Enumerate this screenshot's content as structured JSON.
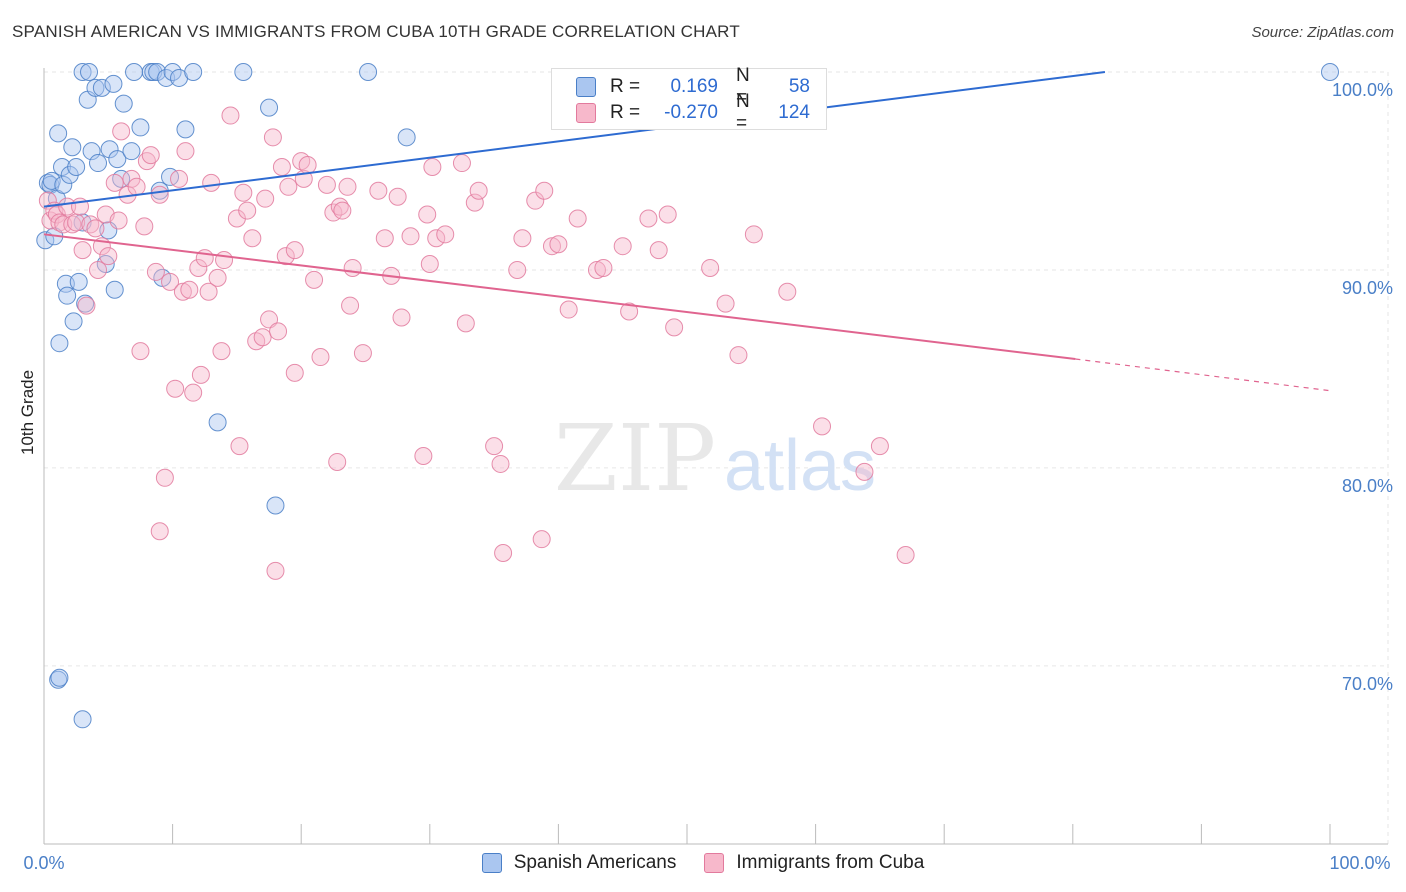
{
  "header": {
    "title": "SPANISH AMERICAN VS IMMIGRANTS FROM CUBA 10TH GRADE CORRELATION CHART",
    "source": "Source: ZipAtlas.com"
  },
  "legend": {
    "r_label": "R =",
    "n_label": "N =",
    "rows": [
      {
        "r": "0.169",
        "n": "58",
        "fill": "#aac6f0",
        "stroke": "#4a7fc7"
      },
      {
        "r": "-0.270",
        "n": "124",
        "fill": "#f7b8cb",
        "stroke": "#e27a9d"
      }
    ]
  },
  "colors": {
    "blue": "#4a7fc7",
    "blue_line": "#2e6bd1",
    "pink": "#e27a9d",
    "pink_line": "#e0648f",
    "grid": "#e6e6e6"
  },
  "chart_data": {
    "type": "scatter",
    "title": "SPANISH AMERICAN VS IMMIGRANTS FROM CUBA 10TH GRADE CORRELATION CHART",
    "xlabel": "",
    "ylabel": "10th Grade",
    "xlim": [
      0,
      100
    ],
    "ylim": [
      61,
      100
    ],
    "x_tick_labels": [
      "0.0%",
      "100.0%"
    ],
    "y_ticks": [
      70,
      80,
      90,
      100
    ],
    "y_tick_labels": [
      "70.0%",
      "80.0%",
      "90.0%",
      "100.0%"
    ],
    "grid": true,
    "legend_position": "top-center",
    "watermark": {
      "zip": "ZIP",
      "atlas": "atlas"
    },
    "series": [
      {
        "name": "Spanish Americans",
        "color": "#4a7fc7",
        "trend": {
          "x0": 0,
          "y0": 93.2,
          "x1": 82.5,
          "y1": 100
        },
        "points": [
          [
            0.1,
            91.5
          ],
          [
            0.3,
            94.4
          ],
          [
            0.5,
            94.3
          ],
          [
            0.6,
            94.5
          ],
          [
            0.8,
            91.7
          ],
          [
            1.0,
            93.6
          ],
          [
            1.1,
            96.9
          ],
          [
            1.2,
            86.3
          ],
          [
            1.4,
            95.2
          ],
          [
            1.5,
            94.3
          ],
          [
            1.7,
            89.3
          ],
          [
            1.8,
            88.7
          ],
          [
            2.0,
            94.8
          ],
          [
            2.2,
            96.2
          ],
          [
            2.3,
            87.4
          ],
          [
            2.5,
            95.2
          ],
          [
            2.7,
            89.4
          ],
          [
            3.0,
            92.4
          ],
          [
            3.0,
            100
          ],
          [
            3.2,
            88.3
          ],
          [
            3.4,
            98.6
          ],
          [
            3.5,
            100
          ],
          [
            3.7,
            96.0
          ],
          [
            4.0,
            99.2
          ],
          [
            4.2,
            95.4
          ],
          [
            4.5,
            99.2
          ],
          [
            4.8,
            90.3
          ],
          [
            5.1,
            96.1
          ],
          [
            5.4,
            99.4
          ],
          [
            5.5,
            89.0
          ],
          [
            5.7,
            95.6
          ],
          [
            6.0,
            94.6
          ],
          [
            6.2,
            98.4
          ],
          [
            6.8,
            96.0
          ],
          [
            7.0,
            100
          ],
          [
            7.5,
            97.2
          ],
          [
            8.3,
            100
          ],
          [
            8.5,
            100
          ],
          [
            8.8,
            100
          ],
          [
            9.0,
            94.0
          ],
          [
            9.2,
            89.6
          ],
          [
            9.5,
            99.7
          ],
          [
            9.8,
            94.7
          ],
          [
            10.0,
            100
          ],
          [
            10.5,
            99.7
          ],
          [
            11.0,
            97.1
          ],
          [
            11.6,
            100
          ],
          [
            13.5,
            82.3
          ],
          [
            15.5,
            100
          ],
          [
            17.5,
            98.2
          ],
          [
            18.0,
            78.1
          ],
          [
            25.2,
            100
          ],
          [
            28.2,
            96.7
          ],
          [
            1.1,
            69.3
          ],
          [
            1.2,
            69.4
          ],
          [
            3.0,
            67.3
          ],
          [
            5.0,
            92.0
          ],
          [
            100,
            100
          ]
        ]
      },
      {
        "name": "Immigrants from Cuba",
        "color": "#e27a9d",
        "trend": {
          "x0": 0,
          "y0": 91.8,
          "x1": 80.2,
          "y1": 85.5,
          "dash_to_x": 100,
          "dash_to_y": 83.9
        },
        "points": [
          [
            0.3,
            93.5
          ],
          [
            0.5,
            92.5
          ],
          [
            0.8,
            93.0
          ],
          [
            1.0,
            92.8
          ],
          [
            1.2,
            92.4
          ],
          [
            1.5,
            92.3
          ],
          [
            1.8,
            93.2
          ],
          [
            2.2,
            92.3
          ],
          [
            2.5,
            92.4
          ],
          [
            2.8,
            93.2
          ],
          [
            3.0,
            91.0
          ],
          [
            3.3,
            88.2
          ],
          [
            3.6,
            92.3
          ],
          [
            4.0,
            92.1
          ],
          [
            4.2,
            90.0
          ],
          [
            4.5,
            91.2
          ],
          [
            4.8,
            92.8
          ],
          [
            5.0,
            90.7
          ],
          [
            5.5,
            94.4
          ],
          [
            5.8,
            92.5
          ],
          [
            6.0,
            97.0
          ],
          [
            6.5,
            93.8
          ],
          [
            6.8,
            94.6
          ],
          [
            7.2,
            94.2
          ],
          [
            7.5,
            85.9
          ],
          [
            7.8,
            92.2
          ],
          [
            8.0,
            95.5
          ],
          [
            8.3,
            95.8
          ],
          [
            8.7,
            89.9
          ],
          [
            9.0,
            93.8
          ],
          [
            9.4,
            79.5
          ],
          [
            9.0,
            76.8
          ],
          [
            9.8,
            89.4
          ],
          [
            10.2,
            84.0
          ],
          [
            10.5,
            94.6
          ],
          [
            10.8,
            88.9
          ],
          [
            11.0,
            96.0
          ],
          [
            11.3,
            89.0
          ],
          [
            11.6,
            83.8
          ],
          [
            12.0,
            90.1
          ],
          [
            12.2,
            84.7
          ],
          [
            12.5,
            90.6
          ],
          [
            12.8,
            88.9
          ],
          [
            13.0,
            94.4
          ],
          [
            13.5,
            89.6
          ],
          [
            13.8,
            85.9
          ],
          [
            14.0,
            90.5
          ],
          [
            14.5,
            97.8
          ],
          [
            15.0,
            92.6
          ],
          [
            15.2,
            81.1
          ],
          [
            15.5,
            93.9
          ],
          [
            15.8,
            93.0
          ],
          [
            16.2,
            91.6
          ],
          [
            16.5,
            86.4
          ],
          [
            17.0,
            86.6
          ],
          [
            17.2,
            93.6
          ],
          [
            17.5,
            87.5
          ],
          [
            17.8,
            96.7
          ],
          [
            18.0,
            74.8
          ],
          [
            18.2,
            86.9
          ],
          [
            18.5,
            95.2
          ],
          [
            18.8,
            90.7
          ],
          [
            19.0,
            94.2
          ],
          [
            19.5,
            91.0
          ],
          [
            19.5,
            84.8
          ],
          [
            20.0,
            95.5
          ],
          [
            20.2,
            94.6
          ],
          [
            20.5,
            95.3
          ],
          [
            21.0,
            89.5
          ],
          [
            21.5,
            85.6
          ],
          [
            22.0,
            94.3
          ],
          [
            22.5,
            92.9
          ],
          [
            22.8,
            80.3
          ],
          [
            23.0,
            93.2
          ],
          [
            23.2,
            93.0
          ],
          [
            23.6,
            94.2
          ],
          [
            23.8,
            88.2
          ],
          [
            24.0,
            90.1
          ],
          [
            24.8,
            85.8
          ],
          [
            26.0,
            94.0
          ],
          [
            26.5,
            91.6
          ],
          [
            27.0,
            89.7
          ],
          [
            27.5,
            93.7
          ],
          [
            27.8,
            87.6
          ],
          [
            28.5,
            91.7
          ],
          [
            29.5,
            80.6
          ],
          [
            29.8,
            92.8
          ],
          [
            30.0,
            90.3
          ],
          [
            30.2,
            95.2
          ],
          [
            30.5,
            91.6
          ],
          [
            31.2,
            91.8
          ],
          [
            32.5,
            95.4
          ],
          [
            32.8,
            87.3
          ],
          [
            33.5,
            93.4
          ],
          [
            33.8,
            94.0
          ],
          [
            35.0,
            81.1
          ],
          [
            35.5,
            80.2
          ],
          [
            35.7,
            75.7
          ],
          [
            36.8,
            90.0
          ],
          [
            37.2,
            91.6
          ],
          [
            38.2,
            93.5
          ],
          [
            38.7,
            76.4
          ],
          [
            38.9,
            94.0
          ],
          [
            39.5,
            91.2
          ],
          [
            40.0,
            91.3
          ],
          [
            40.8,
            88.0
          ],
          [
            41.5,
            92.6
          ],
          [
            43.0,
            90.0
          ],
          [
            43.5,
            90.1
          ],
          [
            45.0,
            91.2
          ],
          [
            45.5,
            87.9
          ],
          [
            47.0,
            92.6
          ],
          [
            47.8,
            91.0
          ],
          [
            48.5,
            92.8
          ],
          [
            49.0,
            87.1
          ],
          [
            51.8,
            90.1
          ],
          [
            53.0,
            88.3
          ],
          [
            54.0,
            85.7
          ],
          [
            55.2,
            91.8
          ],
          [
            57.8,
            88.9
          ],
          [
            60.5,
            82.1
          ],
          [
            63.8,
            79.8
          ],
          [
            65.0,
            81.1
          ],
          [
            67.0,
            75.6
          ]
        ]
      }
    ]
  }
}
